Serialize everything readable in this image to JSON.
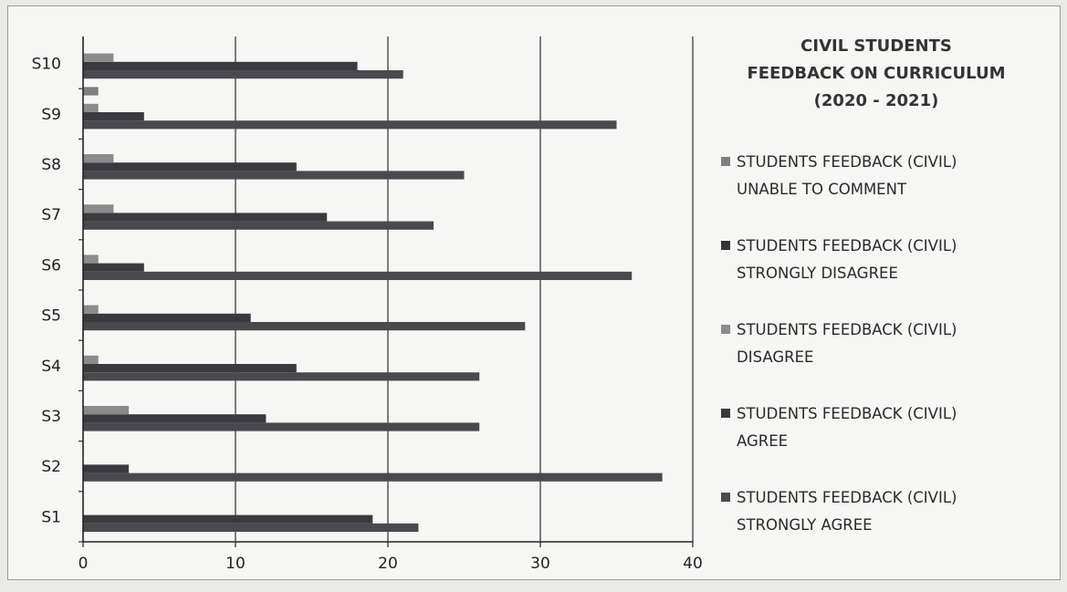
{
  "chart_data": {
    "type": "bar",
    "orientation": "horizontal",
    "title": [
      "CIVIL STUDENTS",
      "FEEDBACK ON CURRICULUM",
      "(2020 - 2021)"
    ],
    "categories": [
      "S1",
      "S2",
      "S3",
      "S4",
      "S5",
      "S6",
      "S7",
      "S8",
      "S9",
      "S10"
    ],
    "xlim": [
      0,
      40
    ],
    "x_ticks": [
      "0",
      "10",
      "20",
      "30",
      "40"
    ],
    "grid": "vertical",
    "legend_position": "right",
    "series": [
      {
        "name_line1": "STUDENTS FEEDBACK (CIVIL)",
        "name_line2": "STRONGLY AGREE",
        "color": "#4a4a4e",
        "values": [
          22,
          38,
          26,
          26,
          29,
          36,
          23,
          25,
          35,
          21
        ]
      },
      {
        "name_line1": "STUDENTS FEEDBACK (CIVIL)",
        "name_line2": "AGREE",
        "color": "#3b3b3f",
        "values": [
          19,
          3,
          12,
          14,
          11,
          4,
          16,
          14,
          4,
          18
        ]
      },
      {
        "name_line1": "STUDENTS FEEDBACK (CIVIL)",
        "name_line2": "DISAGREE",
        "color": "#8b8b8b",
        "values": [
          0,
          0,
          3,
          1,
          1,
          1,
          2,
          2,
          1,
          2
        ]
      },
      {
        "name_line1": "STUDENTS FEEDBACK (CIVIL)",
        "name_line2": "STRONGLY DISAGREE",
        "color": "#333336",
        "values": [
          0,
          0,
          0,
          0,
          0,
          0,
          0,
          0,
          0,
          0
        ]
      },
      {
        "name_line1": "STUDENTS FEEDBACK (CIVIL)",
        "name_line2": "UNABLE TO COMMENT",
        "color": "#7e7e7e",
        "values": [
          0,
          0,
          0,
          0,
          0,
          0,
          0,
          0,
          1,
          0
        ]
      }
    ]
  }
}
